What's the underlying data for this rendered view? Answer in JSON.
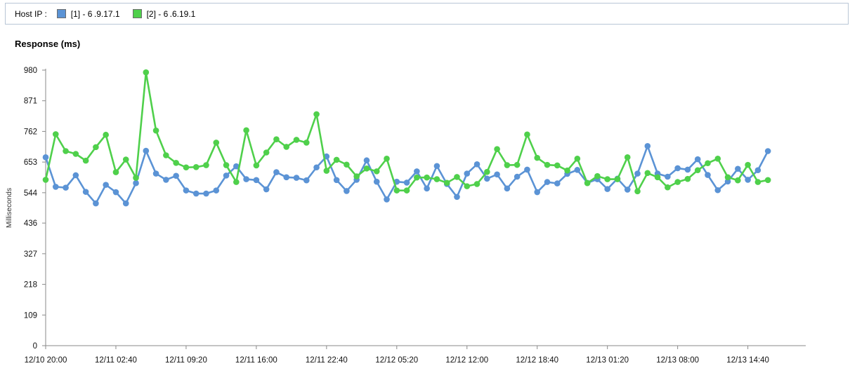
{
  "legend": {
    "label": "Host IP :",
    "items": [
      {
        "label": "[1] - 6 .9.17.1",
        "color": "#5b93d5"
      },
      {
        "label": "[2] - 6 .6.19.1",
        "color": "#4fd04b"
      }
    ]
  },
  "chart_data": {
    "type": "line",
    "title": "Response (ms)",
    "ylabel": "Milliseconds",
    "xlabel": "",
    "ylim": [
      0,
      980
    ],
    "yticks": [
      0,
      109,
      218,
      327,
      436,
      544,
      653,
      762,
      871,
      980
    ],
    "x_tick_labels": [
      "12/10 20:00",
      "12/11 02:40",
      "12/11 09:20",
      "12/11 16:00",
      "12/11 22:40",
      "12/12 05:20",
      "12/12 12:00",
      "12/12 18:40",
      "12/13 01:20",
      "12/13 08:00",
      "12/13 14:40"
    ],
    "x_tick_indices": [
      0,
      7,
      14,
      21,
      28,
      35,
      42,
      49,
      56,
      63,
      70
    ],
    "grid": false,
    "legend_position": "top",
    "series": [
      {
        "name": "[1] - 6 .9.17.1",
        "color": "#5b93d5",
        "values": [
          670,
          565,
          562,
          606,
          547,
          506,
          572,
          546,
          506,
          578,
          693,
          612,
          590,
          604,
          552,
          541,
          541,
          552,
          605,
          638,
          592,
          589,
          556,
          617,
          599,
          597,
          588,
          634,
          673,
          589,
          550,
          590,
          659,
          583,
          520,
          583,
          580,
          620,
          559,
          639,
          575,
          529,
          612,
          645,
          594,
          609,
          559,
          601,
          626,
          546,
          582,
          577,
          611,
          625,
          579,
          592,
          557,
          594,
          555,
          612,
          710,
          612,
          601,
          631,
          626,
          663,
          607,
          553,
          584,
          629,
          590,
          624,
          692
        ]
      },
      {
        "name": "[2] - 6 .6.19.1",
        "color": "#4fd04b",
        "values": [
          590,
          752,
          692,
          682,
          658,
          706,
          750,
          617,
          662,
          597,
          972,
          765,
          677,
          650,
          634,
          635,
          642,
          722,
          642,
          582,
          766,
          641,
          687,
          734,
          707,
          732,
          722,
          823,
          622,
          661,
          644,
          602,
          630,
          620,
          665,
          552,
          552,
          598,
          598,
          592,
          579,
          600,
          567,
          575,
          618,
          699,
          642,
          643,
          751,
          668,
          643,
          641,
          623,
          665,
          578,
          603,
          592,
          592,
          670,
          549,
          614,
          599,
          563,
          582,
          593,
          624,
          649,
          665,
          599,
          588,
          643,
          582,
          589
        ]
      }
    ]
  }
}
